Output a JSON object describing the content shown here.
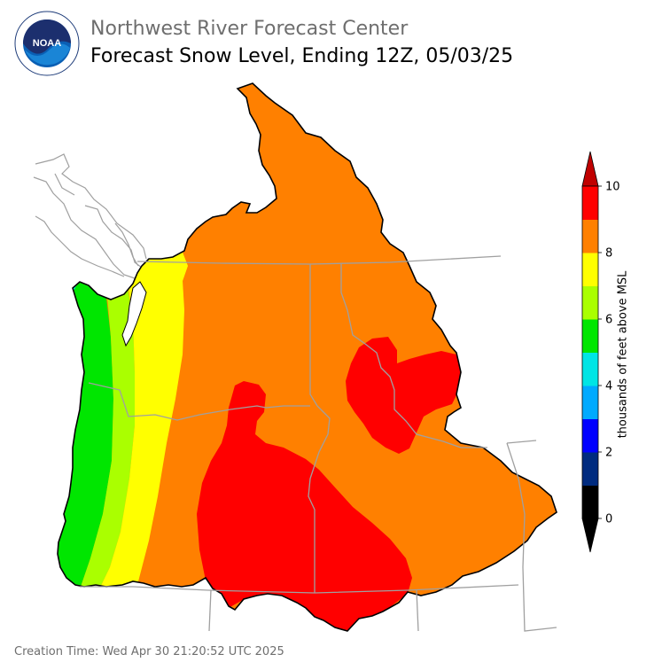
{
  "header": {
    "center_name": "Northwest River Forecast Center",
    "product_title": "Forecast Snow Level, Ending 12Z, 05/03/25"
  },
  "logo": {
    "icon": "noaa-logo-icon",
    "text": "NOAA",
    "ring_text": "NATIONAL OCEANIC AND ATMOSPHERIC ADMINISTRATION · U.S. DEPARTMENT OF COMMERCE"
  },
  "map": {
    "region": "Pacific Northwest / Columbia River Basin",
    "legend_colors": {
      "0-1": "#000000",
      "1-2": "#002b7f",
      "2-3": "#0000ff",
      "3-4": "#00aaff",
      "4-5": "#00e5e5",
      "5-6": "#00e600",
      "6-7": "#aaff00",
      "7-8": "#ffff00",
      "8-9": "#ff8000",
      "9-10": "#ff0000",
      "over": "#c00000",
      "border": "#a0a0a0",
      "coast": "#a0a0a0",
      "basin_outline": "#000000"
    }
  },
  "colorbar": {
    "label": "thousands of feet above MSL",
    "tick_labels": [
      "0",
      "2",
      "4",
      "6",
      "8",
      "10"
    ],
    "min": 0,
    "max": 10,
    "extend": "both"
  },
  "footer": {
    "creation_time": "Creation Time: Wed Apr 30 21:20:52 UTC 2025"
  }
}
